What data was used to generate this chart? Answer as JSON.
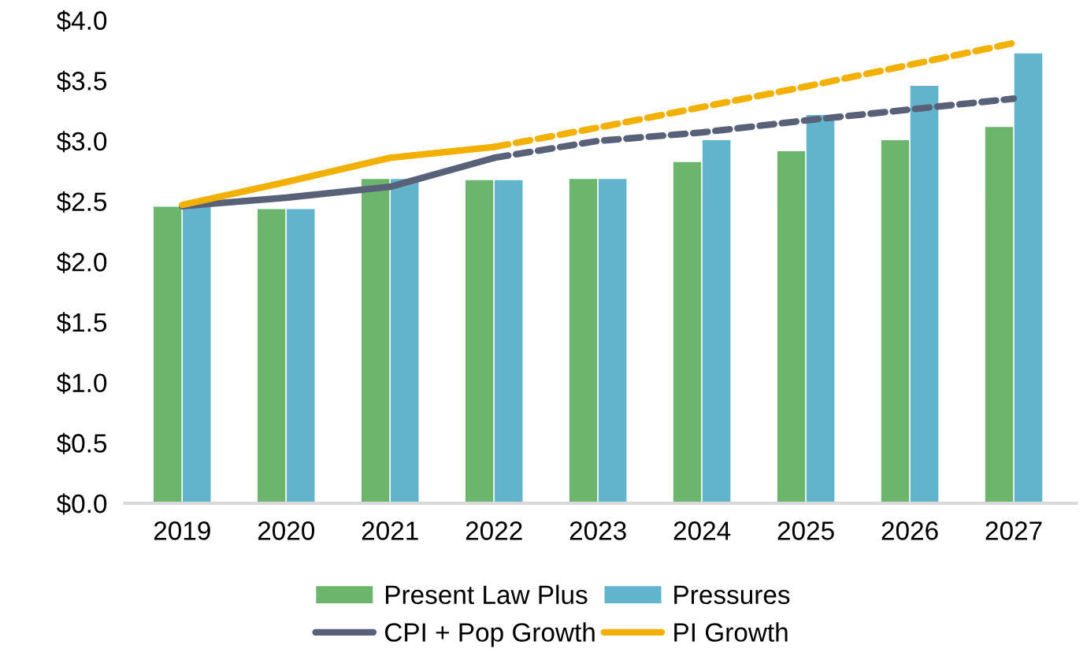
{
  "chart_data": {
    "type": "bar",
    "categories": [
      "2019",
      "2020",
      "2021",
      "2022",
      "2023",
      "2024",
      "2025",
      "2026",
      "2027"
    ],
    "ylim": [
      0,
      4
    ],
    "yticks": [
      {
        "value": 0,
        "label": "$0.0"
      },
      {
        "value": 0.5,
        "label": "$0.5"
      },
      {
        "value": 1,
        "label": "$1.0"
      },
      {
        "value": 1.5,
        "label": "$1.5"
      },
      {
        "value": 2,
        "label": "$2.0"
      },
      {
        "value": 2.5,
        "label": "$2.5"
      },
      {
        "value": 3,
        "label": "$3.0"
      },
      {
        "value": 3.5,
        "label": "$3.5"
      },
      {
        "value": 4,
        "label": "$4.0"
      }
    ],
    "grid": false,
    "legend": "bottom",
    "series": [
      {
        "name": "Present Law Plus",
        "color": "#6bb56d",
        "values": [
          2.46,
          2.44,
          2.69,
          2.68,
          2.69,
          2.83,
          2.92,
          3.01,
          3.12
        ]
      },
      {
        "name": "Pressures",
        "color": "#62b3cc",
        "values": [
          2.46,
          2.44,
          2.69,
          2.68,
          2.69,
          3.01,
          3.22,
          3.46,
          3.73
        ]
      },
      {
        "name": "CPI + Pop Growth",
        "type": "line",
        "line_style": "solid",
        "color": "#596179",
        "values": [
          2.46,
          2.53,
          2.62,
          2.86,
          null,
          null,
          null,
          null,
          null
        ]
      },
      {
        "name": "PI Growth",
        "type": "line",
        "line_style": "solid",
        "color": "#f2b000",
        "values": [
          2.47,
          2.66,
          2.86,
          2.95,
          null,
          null,
          null,
          null,
          null
        ]
      },
      {
        "type": "line",
        "line_style": "dashed",
        "color": "#596179",
        "values": [
          null,
          null,
          null,
          2.86,
          3.0,
          3.07,
          3.17,
          3.26,
          3.35
        ]
      },
      {
        "type": "line",
        "line_style": "dashed",
        "color": "#f2b000",
        "values": [
          null,
          null,
          null,
          2.95,
          3.11,
          3.28,
          3.45,
          3.63,
          3.81
        ]
      }
    ]
  }
}
